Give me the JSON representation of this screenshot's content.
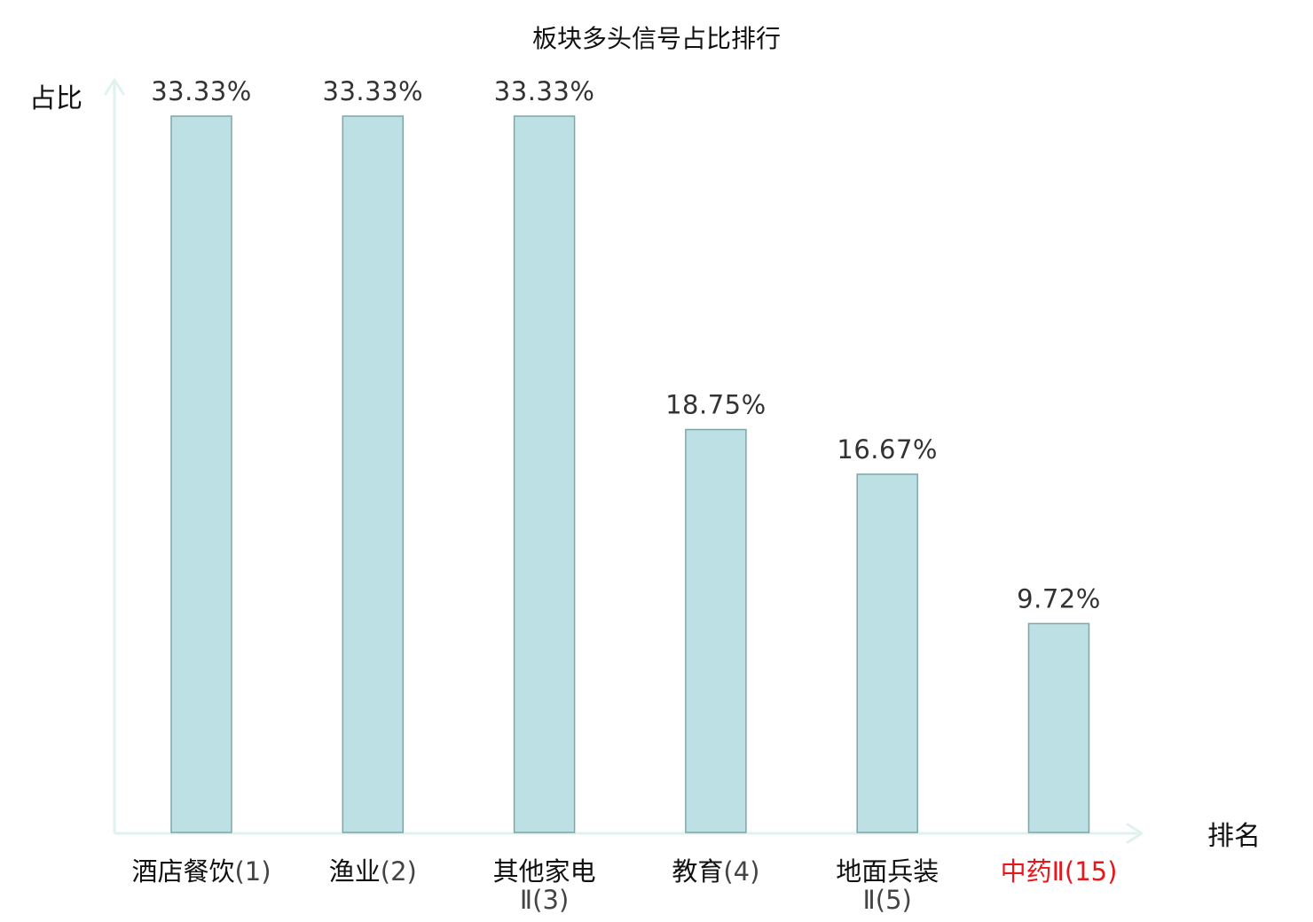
{
  "chart_data": {
    "type": "bar",
    "title": "板块多头信号占比排行",
    "xlabel": "排名",
    "ylabel": "占比",
    "categories": [
      {
        "name": "酒店餐饮",
        "rank": "(1)",
        "highlight": false
      },
      {
        "name": "渔业",
        "rank": "(2)",
        "highlight": false
      },
      {
        "name": "其他家电",
        "rank": "Ⅱ(3)",
        "highlight": false
      },
      {
        "name": "教育",
        "rank": "(4)",
        "highlight": false
      },
      {
        "name": "地面兵装",
        "rank": "Ⅱ(5)",
        "highlight": false
      },
      {
        "name": "中药Ⅱ",
        "rank": "(15)",
        "highlight": true
      }
    ],
    "values": [
      33.33,
      33.33,
      33.33,
      18.75,
      16.67,
      9.72
    ],
    "value_labels": [
      "33.33%",
      "33.33%",
      "33.33%",
      "18.75%",
      "16.67%",
      "9.72%"
    ],
    "ylim": [
      0,
      33.33
    ],
    "grid": false,
    "legend": "none"
  },
  "colors": {
    "bar_fill": "#bce0e3",
    "bar_stroke": "#7fa5a8",
    "axis": "#dff2ef",
    "text": "#111111",
    "value_text": "#333333",
    "rank_text": "#444444",
    "highlight": "#e8171c"
  }
}
